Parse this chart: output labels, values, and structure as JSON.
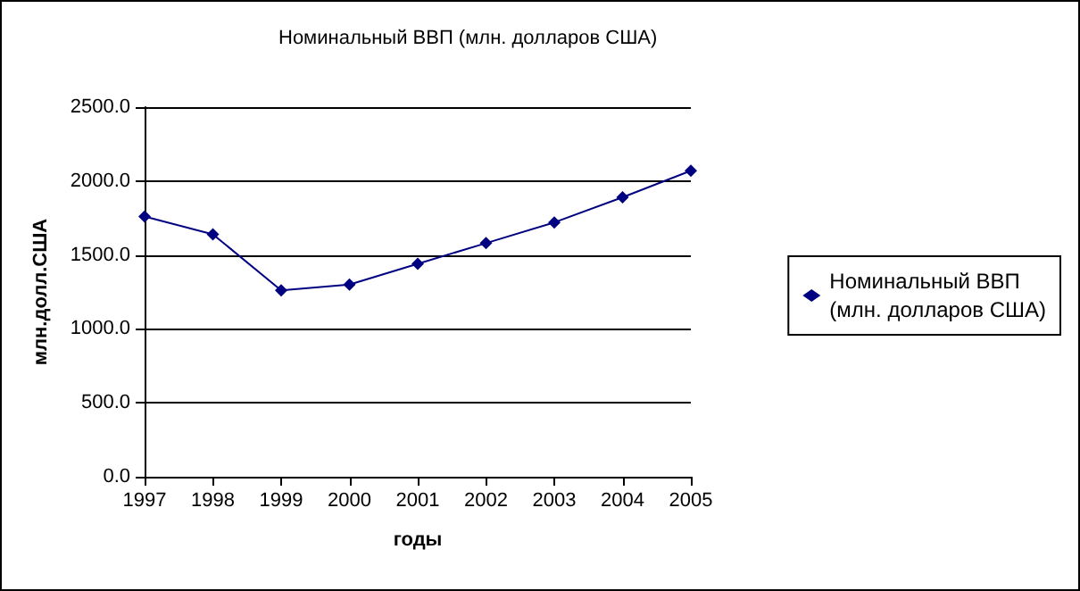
{
  "chart_data": {
    "type": "line",
    "title": "Номинальный ВВП (млн. долларов США)",
    "xlabel": "годы",
    "ylabel": "млн.долл.США",
    "categories": [
      "1997",
      "1998",
      "1999",
      "2000",
      "2001",
      "2002",
      "2003",
      "2004",
      "2005"
    ],
    "series": [
      {
        "name": "Номинальный ВВП (млн. долларов США)",
        "color": "#000080",
        "values": [
          1760,
          1640,
          1260,
          1300,
          1440,
          1580,
          1720,
          1890,
          2070
        ]
      }
    ],
    "ylim": [
      0,
      2500
    ],
    "yticks": [
      {
        "value": 0,
        "label": "0.0"
      },
      {
        "value": 500,
        "label": "500.0"
      },
      {
        "value": 1000,
        "label": "1000.0"
      },
      {
        "value": 1500,
        "label": "1500.0"
      },
      {
        "value": 2000,
        "label": "2000.0"
      },
      {
        "value": 2500,
        "label": "2500.0"
      }
    ],
    "grid": "y",
    "legend": "right",
    "marker": "diamond",
    "line_style": "solid"
  }
}
